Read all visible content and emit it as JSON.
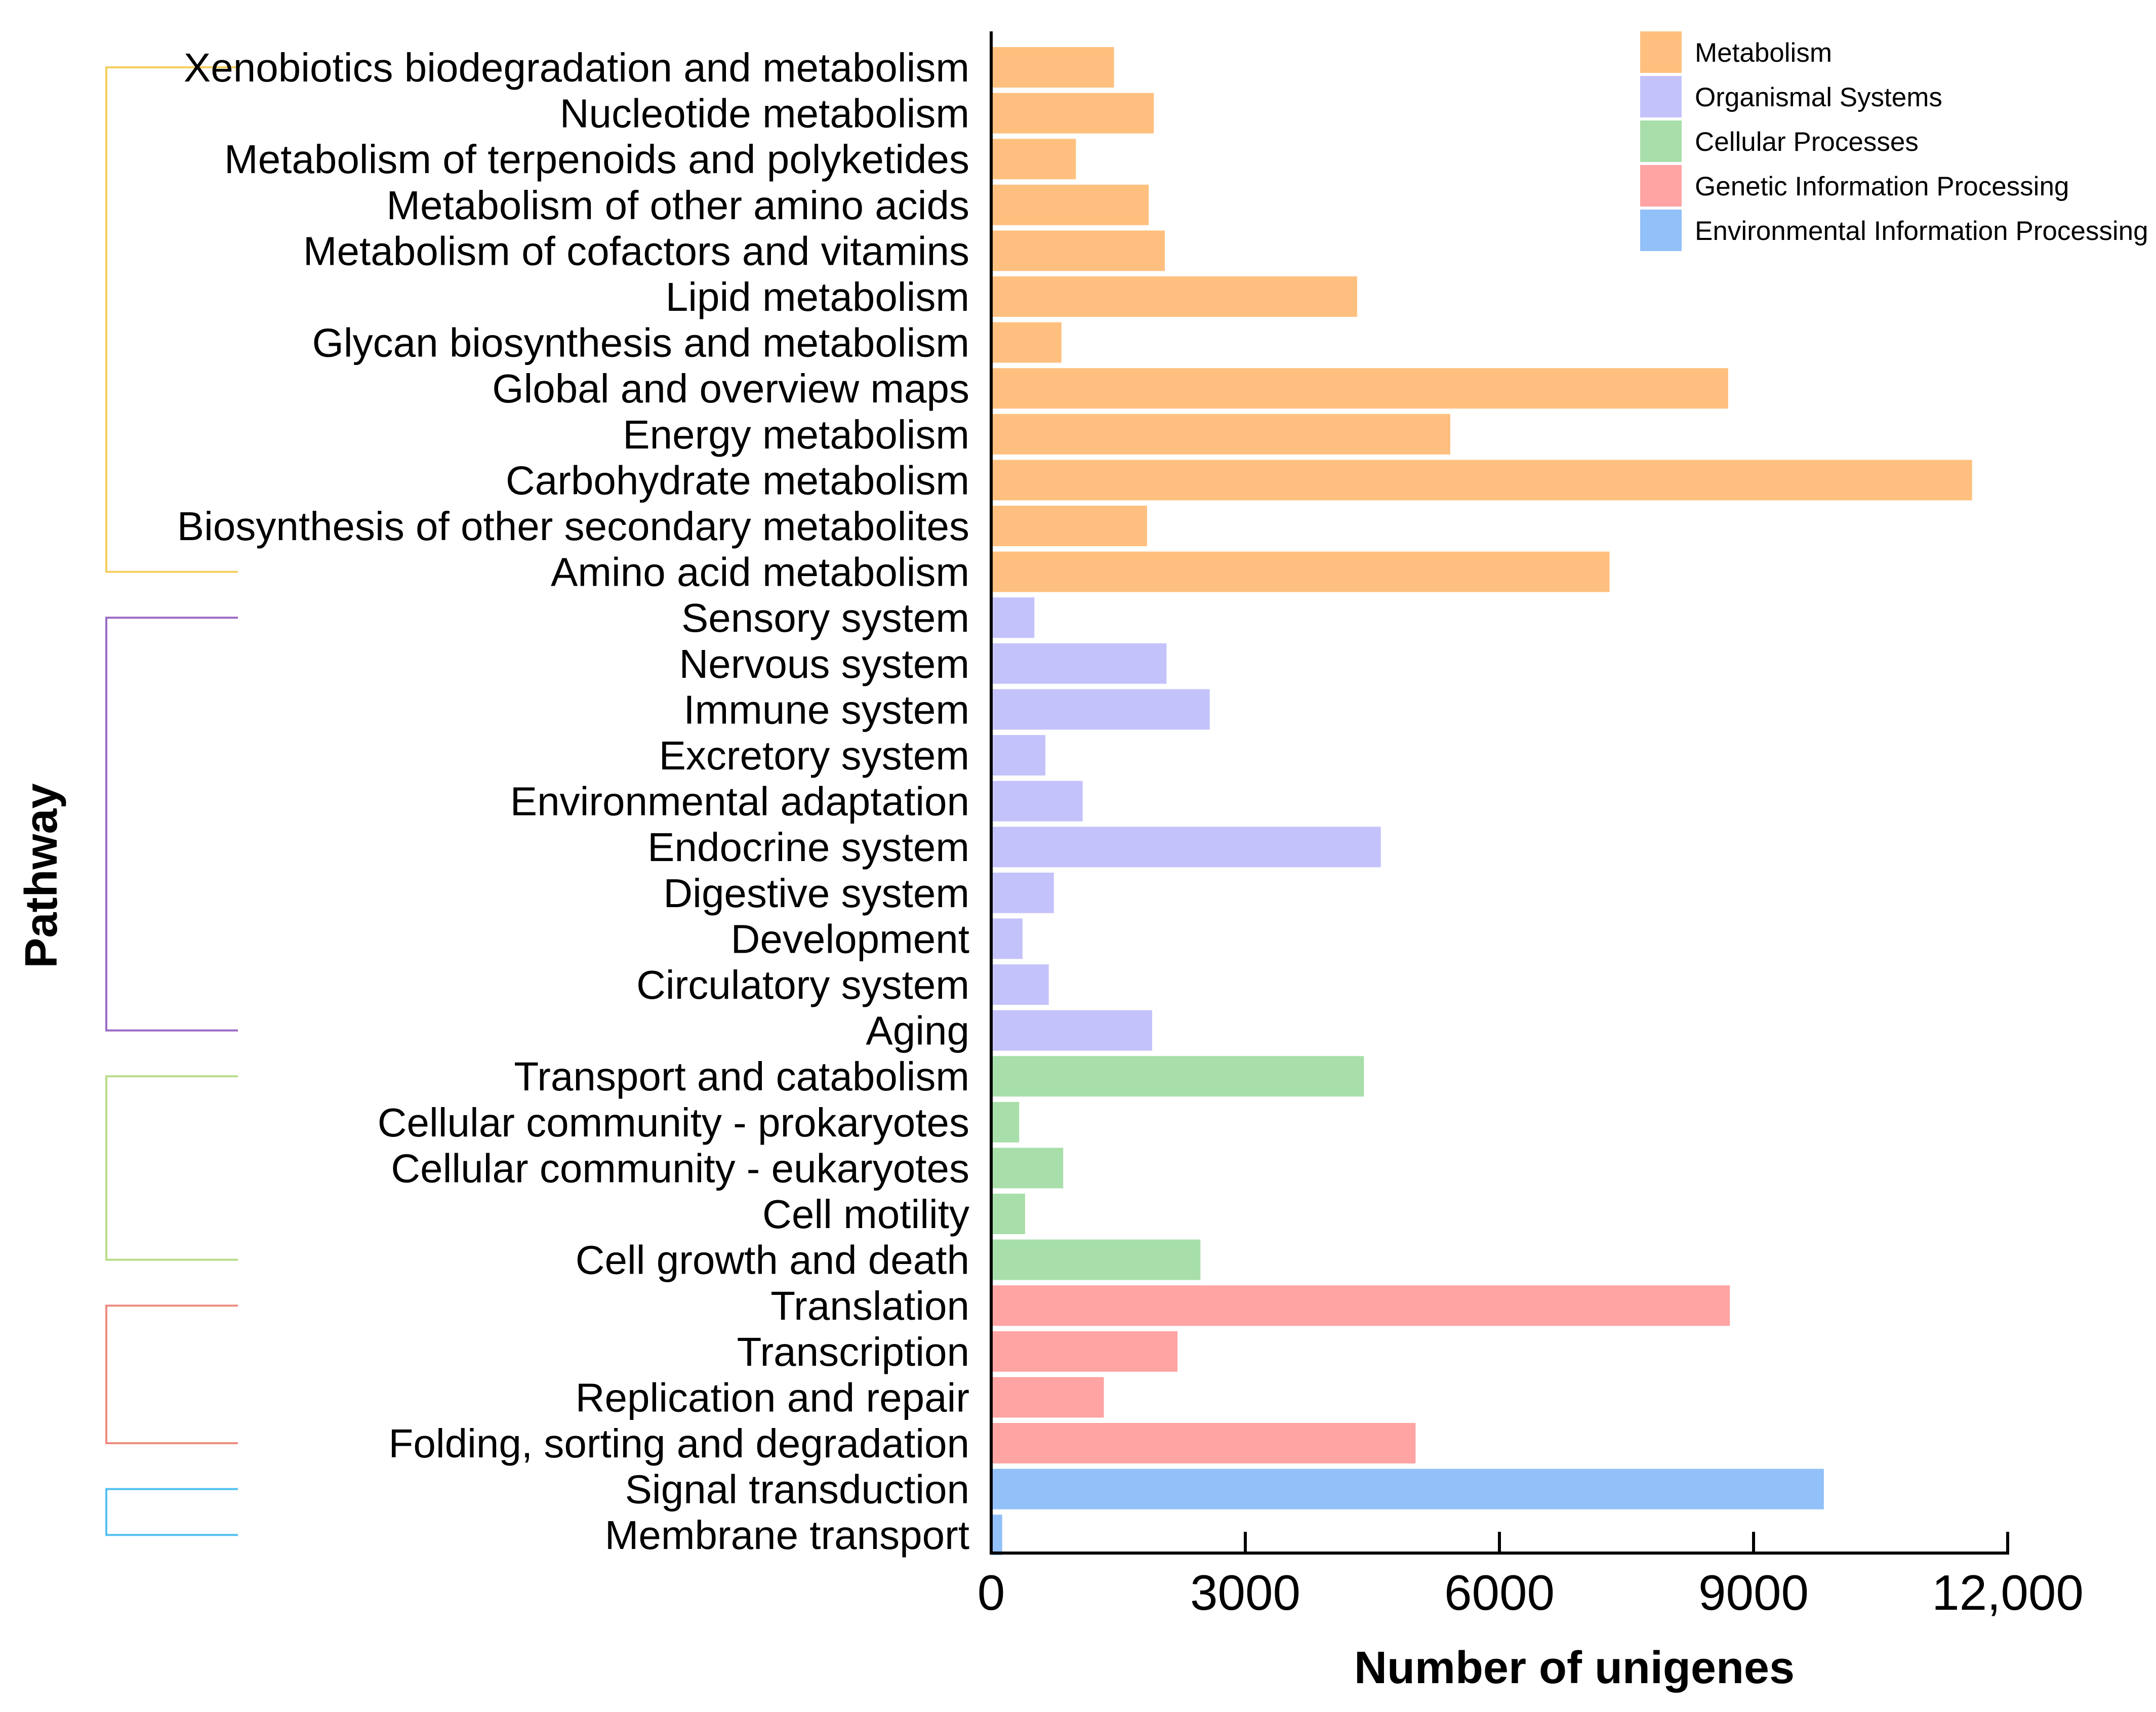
{
  "chart_data": {
    "type": "bar",
    "orientation": "horizontal",
    "xlabel": "Number of unigenes",
    "ylabel": "Pathway",
    "xlim": [
      0,
      12000
    ],
    "xticks": [
      {
        "value": 0,
        "label": "0"
      },
      {
        "value": 3000,
        "label": "3000"
      },
      {
        "value": 6000,
        "label": "6000"
      },
      {
        "value": 9000,
        "label": "9000"
      },
      {
        "value": 12000,
        "label": "12,000"
      }
    ],
    "legend_position": "top-right",
    "groups": [
      {
        "name": "Metabolism",
        "color": "#FFC07F"
      },
      {
        "name": "Organismal Systems",
        "color": "#C4C2FB"
      },
      {
        "name": "Cellular Processes",
        "color": "#A8DEA9"
      },
      {
        "name": "Genetic Information Processing",
        "color": "#FFA3A3"
      },
      {
        "name": "Environmental Information Processing",
        "color": "#92C0F8"
      }
    ],
    "bracket_colors": [
      "#F3CF60",
      "#9B6BC4",
      "#B8DC8A",
      "#EE8C80",
      "#52C0F0"
    ],
    "bars": [
      {
        "label": "Xenobiotics biodegradation and metabolism",
        "value": 1450,
        "group": 0
      },
      {
        "label": "Nucleotide metabolism",
        "value": 1920,
        "group": 0
      },
      {
        "label": "Metabolism of terpenoids and polyketides",
        "value": 1000,
        "group": 0
      },
      {
        "label": "Metabolism of other amino acids",
        "value": 1860,
        "group": 0
      },
      {
        "label": "Metabolism of cofactors and vitamins",
        "value": 2050,
        "group": 0
      },
      {
        "label": "Lipid metabolism",
        "value": 4320,
        "group": 0
      },
      {
        "label": "Glycan biosynthesis and metabolism",
        "value": 830,
        "group": 0
      },
      {
        "label": "Global and overview maps",
        "value": 8700,
        "group": 0
      },
      {
        "label": "Energy metabolism",
        "value": 5420,
        "group": 0
      },
      {
        "label": "Carbohydrate metabolism",
        "value": 11580,
        "group": 0
      },
      {
        "label": "Biosynthesis of other secondary metabolites",
        "value": 1840,
        "group": 0
      },
      {
        "label": "Amino acid metabolism",
        "value": 7300,
        "group": 0
      },
      {
        "label": "Sensory system",
        "value": 510,
        "group": 1
      },
      {
        "label": "Nervous system",
        "value": 2070,
        "group": 1
      },
      {
        "label": "Immune system",
        "value": 2580,
        "group": 1
      },
      {
        "label": "Excretory system",
        "value": 640,
        "group": 1
      },
      {
        "label": "Environmental adaptation",
        "value": 1080,
        "group": 1
      },
      {
        "label": "Endocrine system",
        "value": 4600,
        "group": 1
      },
      {
        "label": "Digestive system",
        "value": 740,
        "group": 1
      },
      {
        "label": "Development",
        "value": 370,
        "group": 1
      },
      {
        "label": "Circulatory system",
        "value": 680,
        "group": 1
      },
      {
        "label": "Aging",
        "value": 1900,
        "group": 1
      },
      {
        "label": "Transport and catabolism",
        "value": 4400,
        "group": 2
      },
      {
        "label": "Cellular community - prokaryotes",
        "value": 330,
        "group": 2
      },
      {
        "label": "Cellular community - eukaryotes",
        "value": 850,
        "group": 2
      },
      {
        "label": "Cell motility",
        "value": 400,
        "group": 2
      },
      {
        "label": "Cell growth and death",
        "value": 2470,
        "group": 2
      },
      {
        "label": "Translation",
        "value": 8720,
        "group": 3
      },
      {
        "label": "Transcription",
        "value": 2200,
        "group": 3
      },
      {
        "label": "Replication and repair",
        "value": 1330,
        "group": 3
      },
      {
        "label": "Folding, sorting and degradation",
        "value": 5010,
        "group": 3
      },
      {
        "label": "Signal transduction",
        "value": 9830,
        "group": 4
      },
      {
        "label": "Membrane transport",
        "value": 130,
        "group": 4
      }
    ]
  }
}
